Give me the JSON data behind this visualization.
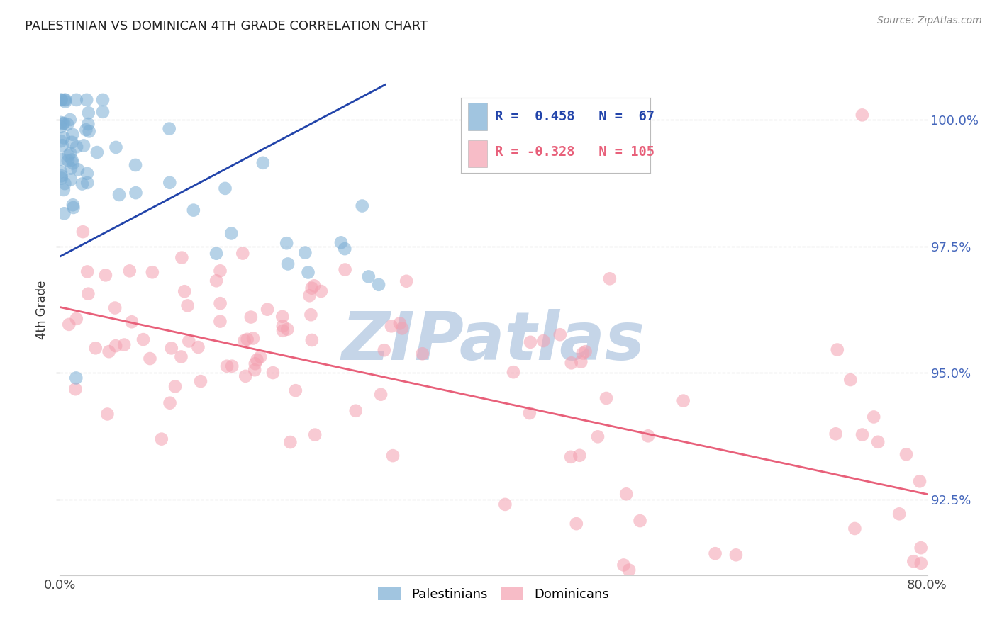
{
  "title": "PALESTINIAN VS DOMINICAN 4TH GRADE CORRELATION CHART",
  "source": "Source: ZipAtlas.com",
  "ylabel": "4th Grade",
  "xlim": [
    0.0,
    80.0
  ],
  "ylim": [
    91.0,
    101.5
  ],
  "yticks": [
    92.5,
    95.0,
    97.5,
    100.0
  ],
  "ytick_labels": [
    "92.5%",
    "95.0%",
    "97.5%",
    "100.0%"
  ],
  "blue_R": 0.458,
  "blue_N": 67,
  "pink_R": -0.328,
  "pink_N": 105,
  "blue_color": "#7AADD4",
  "pink_color": "#F4A0B0",
  "blue_line_color": "#2244AA",
  "pink_line_color": "#E8607A",
  "blue_legend_label": "Palestinians",
  "pink_legend_label": "Dominicans",
  "watermark": "ZIPatlas",
  "watermark_color": "#C5D5E8",
  "background_color": "#FFFFFF",
  "grid_color": "#CCCCCC",
  "right_tick_color": "#4466BB",
  "title_color": "#222222",
  "blue_line_x0": 0.0,
  "blue_line_x1": 30.0,
  "blue_line_y0": 97.3,
  "blue_line_y1": 100.7,
  "pink_line_x0": 0.0,
  "pink_line_x1": 80.0,
  "pink_line_y0": 96.3,
  "pink_line_y1": 92.6
}
